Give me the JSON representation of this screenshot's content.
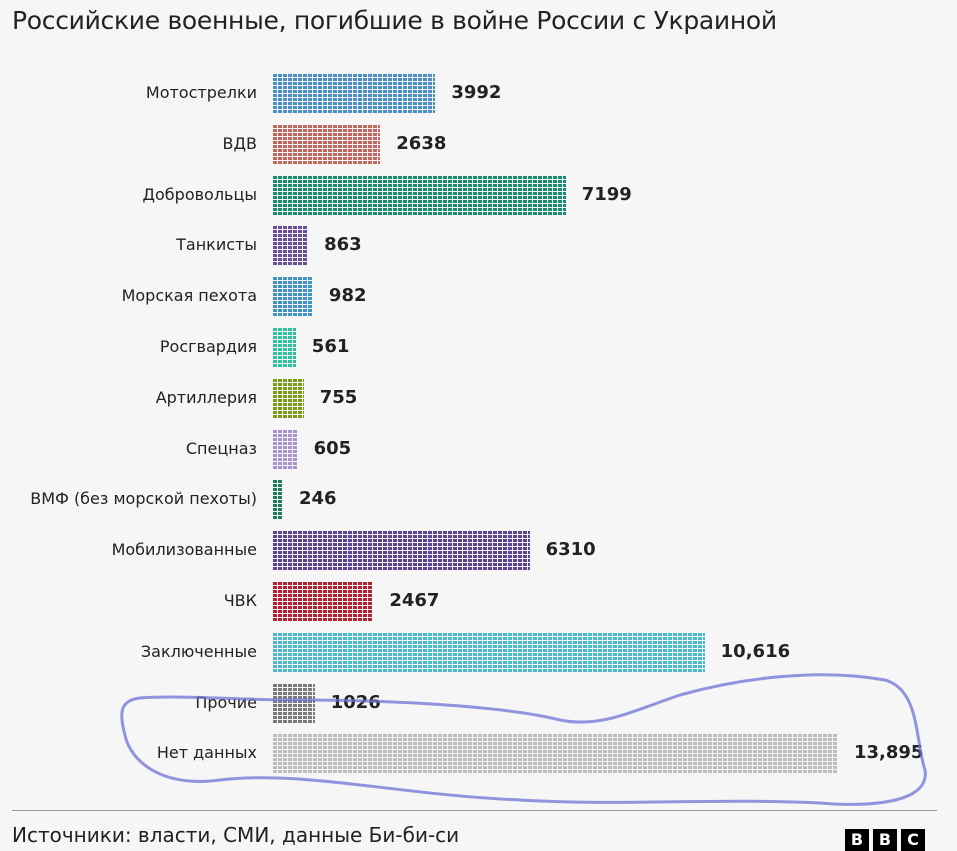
{
  "title": "Российские военные, погибшие в войне России с Украиной",
  "source": "Источники: власти, СМИ, данные Би-би-си",
  "logo": "BBC",
  "chart_data": {
    "type": "bar",
    "orientation": "horizontal",
    "style": "dot-matrix (unit grid)",
    "title": "Российские военные, погибшие в войне России с Украиной",
    "categories": [
      "Мотострелки",
      "ВДВ",
      "Добровольцы",
      "Танкисты",
      "Морская пехота",
      "Росгвардия",
      "Артиллерия",
      "Спецназ",
      "ВМФ (без морской пехоты)",
      "Мобилизованные",
      "ЧВК",
      "Заключенные",
      "Прочие",
      "Нет данных"
    ],
    "values": [
      3992,
      2638,
      7199,
      863,
      982,
      561,
      755,
      605,
      246,
      6310,
      2467,
      10616,
      1026,
      13895
    ],
    "value_labels": [
      "3992",
      "2638",
      "7199",
      "863",
      "982",
      "561",
      "755",
      "605",
      "246",
      "6310",
      "2467",
      "10,616",
      "1026",
      "13,895"
    ],
    "colors": [
      "#4a8fc9",
      "#c0675e",
      "#1b8b6d",
      "#6a4d9c",
      "#3f94c2",
      "#2fc1a2",
      "#7b9a1d",
      "#a993d3",
      "#1c7c5c",
      "#5c4391",
      "#b3202d",
      "#4cb9c9",
      "#7a7a7a",
      "#bdbdbd"
    ],
    "annotation": "hand-drawn blue outline around Прочие and Нет данных"
  }
}
